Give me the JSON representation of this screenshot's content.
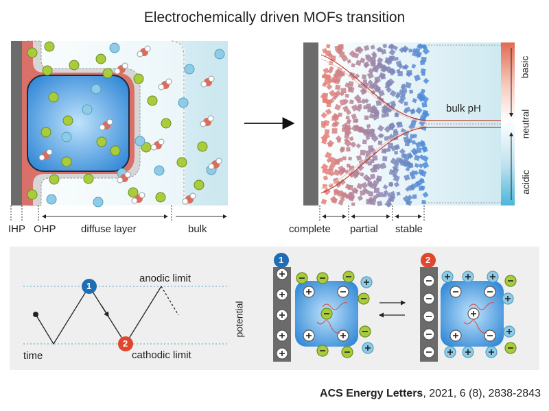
{
  "title": "Electrochemically driven MOFs transition",
  "panel_a": {
    "labels": [
      "IHP",
      "OHP",
      "diffuse layer",
      "bulk"
    ]
  },
  "panel_b": {
    "zones": [
      "complete",
      "partial",
      "stable"
    ],
    "bulk_ph_label": "bulk pH",
    "ph_scale": [
      "basic",
      "neutral",
      "acidic"
    ]
  },
  "panel_c": {
    "wave_labels": {
      "anodic": "anodic limit",
      "cathodic": "cathodic limit",
      "time": "time",
      "potential": "potential"
    },
    "markers": [
      "1",
      "2"
    ]
  },
  "citation": {
    "journal": "ACS Energy Letters",
    "details": ", 2021, 6 (8), 2838-2843"
  },
  "colors": {
    "electrode": "#6b6b6b",
    "ihp": "#d9716a",
    "mof_blue": "#3f93d9",
    "cation_green": "#a8cc3b",
    "anion_blue": "#8fcbe6",
    "marker_blue": "#1f6db5",
    "marker_red": "#e0472f",
    "lower_panel_bg": "#efefef"
  }
}
